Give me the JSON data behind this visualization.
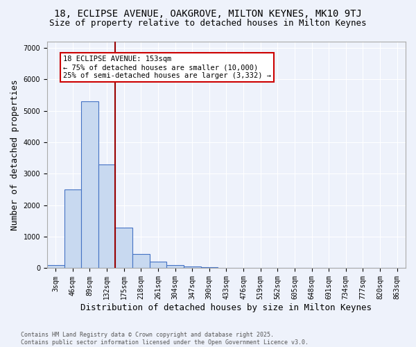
{
  "title1": "18, ECLIPSE AVENUE, OAKGROVE, MILTON KEYNES, MK10 9TJ",
  "title2": "Size of property relative to detached houses in Milton Keynes",
  "xlabel": "Distribution of detached houses by size in Milton Keynes",
  "ylabel": "Number of detached properties",
  "bar_color": "#c8d9f0",
  "bar_edge_color": "#4472c4",
  "bin_labels": [
    "3sqm",
    "46sqm",
    "89sqm",
    "132sqm",
    "175sqm",
    "218sqm",
    "261sqm",
    "304sqm",
    "347sqm",
    "390sqm",
    "433sqm",
    "476sqm",
    "519sqm",
    "562sqm",
    "605sqm",
    "648sqm",
    "691sqm",
    "734sqm",
    "777sqm",
    "820sqm",
    "863sqm"
  ],
  "bar_values": [
    100,
    2500,
    5300,
    3300,
    1300,
    450,
    200,
    100,
    50,
    40,
    0,
    0,
    0,
    0,
    0,
    0,
    0,
    0,
    0,
    0,
    0
  ],
  "red_line_x": 3.49,
  "annotation_text": "18 ECLIPSE AVENUE: 153sqm\n← 75% of detached houses are smaller (10,000)\n25% of semi-detached houses are larger (3,332) →",
  "annotation_box_color": "#ffffff",
  "annotation_border_color": "#cc0000",
  "ylim": [
    0,
    7200
  ],
  "yticks": [
    0,
    1000,
    2000,
    3000,
    4000,
    5000,
    6000,
    7000
  ],
  "background_color": "#eef2fb",
  "grid_color": "#ffffff",
  "footnote": "Contains HM Land Registry data © Crown copyright and database right 2025.\nContains public sector information licensed under the Open Government Licence v3.0.",
  "title1_fontsize": 10,
  "title2_fontsize": 9,
  "xlabel_fontsize": 9,
  "ylabel_fontsize": 9,
  "annotation_fontsize": 7.5,
  "tick_fontsize": 7,
  "footnote_fontsize": 6,
  "footnote_color": "#555555"
}
